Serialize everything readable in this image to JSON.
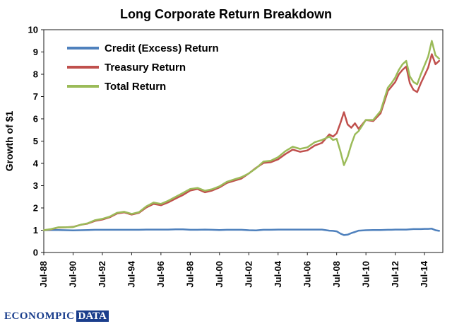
{
  "footer": {
    "logo_main": "ECONOMPIC",
    "logo_box": "DATA"
  },
  "chart_data": {
    "type": "line",
    "title": "Long Corporate Return Breakdown",
    "xlabel": "",
    "ylabel": "Growth of $1",
    "ylim": [
      0,
      10
    ],
    "y_ticks": [
      0,
      1,
      2,
      3,
      4,
      5,
      6,
      7,
      8,
      9,
      10
    ],
    "x_range": [
      1988.5,
      2015.75
    ],
    "x_ticks": [
      1988.5,
      1990.5,
      1992.5,
      1994.5,
      1996.5,
      1998.5,
      2000.5,
      2002.5,
      2004.5,
      2006.5,
      2008.5,
      2010.5,
      2012.5,
      2014.5
    ],
    "x_tick_labels": [
      "Jul-88",
      "Jul-90",
      "Jul-92",
      "Jul-94",
      "Jul-96",
      "Jul-98",
      "Jul-00",
      "Jul-02",
      "Jul-04",
      "Jul-06",
      "Jul-08",
      "Jul-10",
      "Jul-12",
      "Jul-14"
    ],
    "grid": false,
    "legend_position": "top-left-inside",
    "x": [
      1988.5,
      1989,
      1989.5,
      1990,
      1990.5,
      1991,
      1991.5,
      1992,
      1992.5,
      1993,
      1993.5,
      1994,
      1994.5,
      1995,
      1995.5,
      1996,
      1996.5,
      1997,
      1997.5,
      1998,
      1998.5,
      1999,
      1999.5,
      2000,
      2000.5,
      2001,
      2001.5,
      2002,
      2002.5,
      2003,
      2003.5,
      2004,
      2004.5,
      2005,
      2005.5,
      2006,
      2006.5,
      2007,
      2007.5,
      2008,
      2008.25,
      2008.5,
      2008.75,
      2009,
      2009.25,
      2009.5,
      2009.75,
      2010,
      2010.5,
      2011,
      2011.5,
      2012,
      2012.25,
      2012.5,
      2012.75,
      2013,
      2013.25,
      2013.5,
      2013.75,
      2014,
      2014.25,
      2014.5,
      2014.75,
      2015,
      2015.25,
      2015.5
    ],
    "series": [
      {
        "name": "Credit (Excess) Return",
        "color": "#4F81BD",
        "values": [
          1.0,
          1.01,
          1.01,
          1.0,
          0.99,
          1.0,
          1.01,
          1.02,
          1.02,
          1.02,
          1.02,
          1.02,
          1.02,
          1.02,
          1.03,
          1.03,
          1.03,
          1.03,
          1.04,
          1.04,
          1.02,
          1.02,
          1.03,
          1.02,
          1.01,
          1.02,
          1.02,
          1.02,
          1.0,
          0.99,
          1.02,
          1.02,
          1.03,
          1.03,
          1.03,
          1.03,
          1.03,
          1.03,
          1.03,
          0.98,
          0.97,
          0.95,
          0.85,
          0.78,
          0.8,
          0.87,
          0.92,
          0.98,
          1.0,
          1.01,
          1.01,
          1.02,
          1.02,
          1.03,
          1.03,
          1.03,
          1.03,
          1.04,
          1.05,
          1.05,
          1.05,
          1.06,
          1.06,
          1.07,
          1.0,
          0.97
        ]
      },
      {
        "name": "Treasury Return",
        "color": "#C0504D",
        "values": [
          1.0,
          1.04,
          1.12,
          1.13,
          1.15,
          1.24,
          1.3,
          1.42,
          1.48,
          1.58,
          1.75,
          1.8,
          1.7,
          1.78,
          2.02,
          2.18,
          2.12,
          2.25,
          2.42,
          2.58,
          2.78,
          2.85,
          2.7,
          2.78,
          2.92,
          3.12,
          3.22,
          3.32,
          3.55,
          3.8,
          4.02,
          4.05,
          4.18,
          4.42,
          4.62,
          4.52,
          4.58,
          4.8,
          4.92,
          5.3,
          5.2,
          5.35,
          5.8,
          6.3,
          5.75,
          5.6,
          5.8,
          5.55,
          5.95,
          5.9,
          6.25,
          7.25,
          7.45,
          7.65,
          8.0,
          8.2,
          8.35,
          7.6,
          7.3,
          7.2,
          7.6,
          7.95,
          8.3,
          8.9,
          8.45,
          8.6
        ]
      },
      {
        "name": "Total Return",
        "color": "#9BBB59",
        "values": [
          1.0,
          1.05,
          1.13,
          1.13,
          1.14,
          1.24,
          1.31,
          1.45,
          1.51,
          1.61,
          1.78,
          1.83,
          1.73,
          1.81,
          2.07,
          2.24,
          2.18,
          2.32,
          2.5,
          2.67,
          2.85,
          2.9,
          2.77,
          2.84,
          2.97,
          3.17,
          3.28,
          3.38,
          3.55,
          3.78,
          4.08,
          4.12,
          4.28,
          4.55,
          4.75,
          4.65,
          4.72,
          4.95,
          5.05,
          5.2,
          5.05,
          5.1,
          4.55,
          3.92,
          4.3,
          4.85,
          5.3,
          5.45,
          5.95,
          5.95,
          6.35,
          7.4,
          7.6,
          7.85,
          8.2,
          8.45,
          8.6,
          7.9,
          7.65,
          7.55,
          8.0,
          8.4,
          8.8,
          9.5,
          8.85,
          8.7
        ]
      }
    ]
  }
}
